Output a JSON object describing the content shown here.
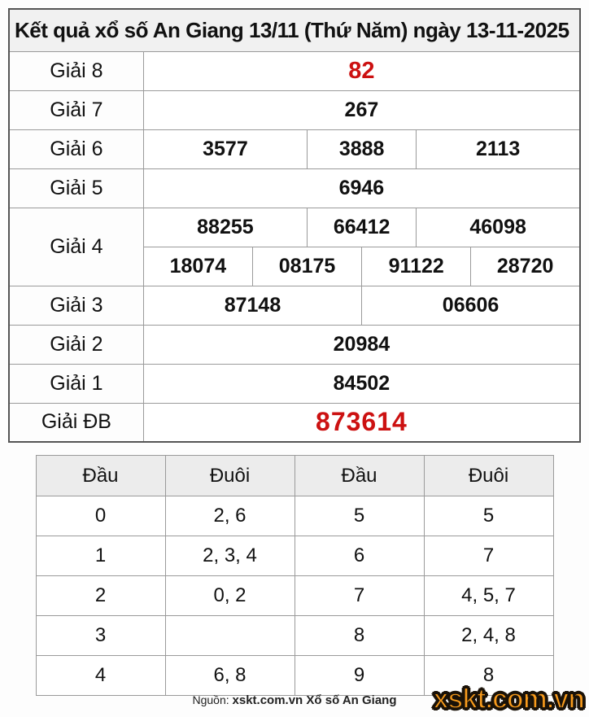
{
  "title": "Kết quả xổ số An Giang 13/11 (Thứ Năm) ngày 13-11-2025",
  "colors": {
    "highlight_red": "#cc1111",
    "logo_orange": "#f89b1c",
    "header_gray": "#ececec",
    "title_gray": "#f1f1f1"
  },
  "results_table": {
    "rows": [
      {
        "label": "Giải 8",
        "highlight": true,
        "groups": [
          [
            "82"
          ]
        ]
      },
      {
        "label": "Giải 7",
        "highlight": false,
        "groups": [
          [
            "267"
          ]
        ]
      },
      {
        "label": "Giải 6",
        "highlight": false,
        "groups": [
          [
            "3577",
            "3888",
            "2113"
          ]
        ]
      },
      {
        "label": "Giải 5",
        "highlight": false,
        "groups": [
          [
            "6946"
          ]
        ]
      },
      {
        "label": "Giải 4",
        "highlight": false,
        "groups": [
          [
            "88255",
            "66412",
            "46098"
          ],
          [
            "18074",
            "08175",
            "91122",
            "28720"
          ]
        ]
      },
      {
        "label": "Giải 3",
        "highlight": false,
        "groups": [
          [
            "87148",
            "06606"
          ]
        ]
      },
      {
        "label": "Giải 2",
        "highlight": false,
        "groups": [
          [
            "20984"
          ]
        ]
      },
      {
        "label": "Giải 1",
        "highlight": false,
        "groups": [
          [
            "84502"
          ]
        ]
      },
      {
        "label": "Giải ĐB",
        "highlight": true,
        "groups": [
          [
            "873614"
          ]
        ]
      }
    ]
  },
  "head_tail_table": {
    "headers": [
      "Đầu",
      "Đuôi",
      "Đầu",
      "Đuôi"
    ],
    "rows": [
      [
        "0",
        "2, 6",
        "5",
        "5"
      ],
      [
        "1",
        "2, 3, 4",
        "6",
        "7"
      ],
      [
        "2",
        "0, 2",
        "7",
        "4, 5, 7"
      ],
      [
        "3",
        "",
        "8",
        "2, 4, 8"
      ],
      [
        "4",
        "6, 8",
        "9",
        "8"
      ]
    ]
  },
  "footer": {
    "source_prefix": "Nguồn:",
    "source_text": "xskt.com.vn Xổ số An Giang",
    "logo_text": "xskt.com.vn"
  }
}
